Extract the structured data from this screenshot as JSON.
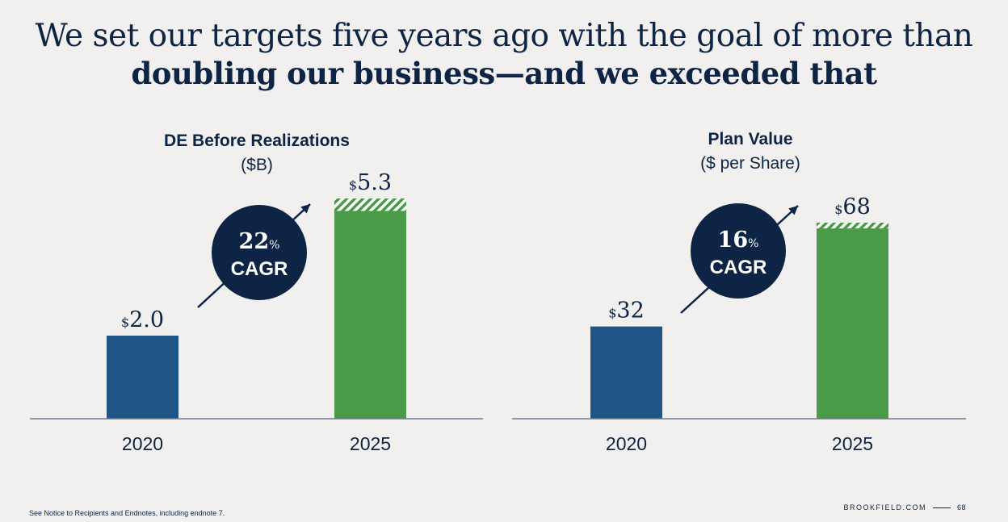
{
  "header": {
    "title_line1": "We set our targets five years ago with the goal of more than",
    "title_line2": "doubling our business—and we exceeded that"
  },
  "colors": {
    "blue_bar": "#1f5584",
    "green_bar": "#4a9a48",
    "navy": "#0d2444",
    "background": "#f1f0ee"
  },
  "chart_data": [
    {
      "type": "bar",
      "title": "DE Before Realizations",
      "subtitle": "($B)",
      "categories": [
        "2020",
        "2025"
      ],
      "values": [
        2.0,
        5.3
      ],
      "value_labels": [
        "2.0",
        "5.3"
      ],
      "currency_symbol": "$",
      "hatched_top_portion": 0.3,
      "bar_colors": [
        "#1f5584",
        "#4a9a48"
      ],
      "ylim": [
        0,
        5.3
      ],
      "cagr_value": "22",
      "cagr_pct": "%",
      "cagr_label": "CAGR"
    },
    {
      "type": "bar",
      "title": "Plan Value",
      "subtitle": "($ per Share)",
      "categories": [
        "2020",
        "2025"
      ],
      "values": [
        32,
        68
      ],
      "value_labels": [
        "32",
        "68"
      ],
      "currency_symbol": "$",
      "hatched_top_portion": 2,
      "bar_colors": [
        "#1f5584",
        "#4a9a48"
      ],
      "ylim": [
        0,
        68
      ],
      "cagr_value": "16",
      "cagr_pct": "%",
      "cagr_label": "CAGR"
    }
  ],
  "footer": {
    "note": "See Notice to Recipients and Endnotes, including endnote 7.",
    "brand": "BROOKFIELD.COM",
    "page_number": "68"
  }
}
